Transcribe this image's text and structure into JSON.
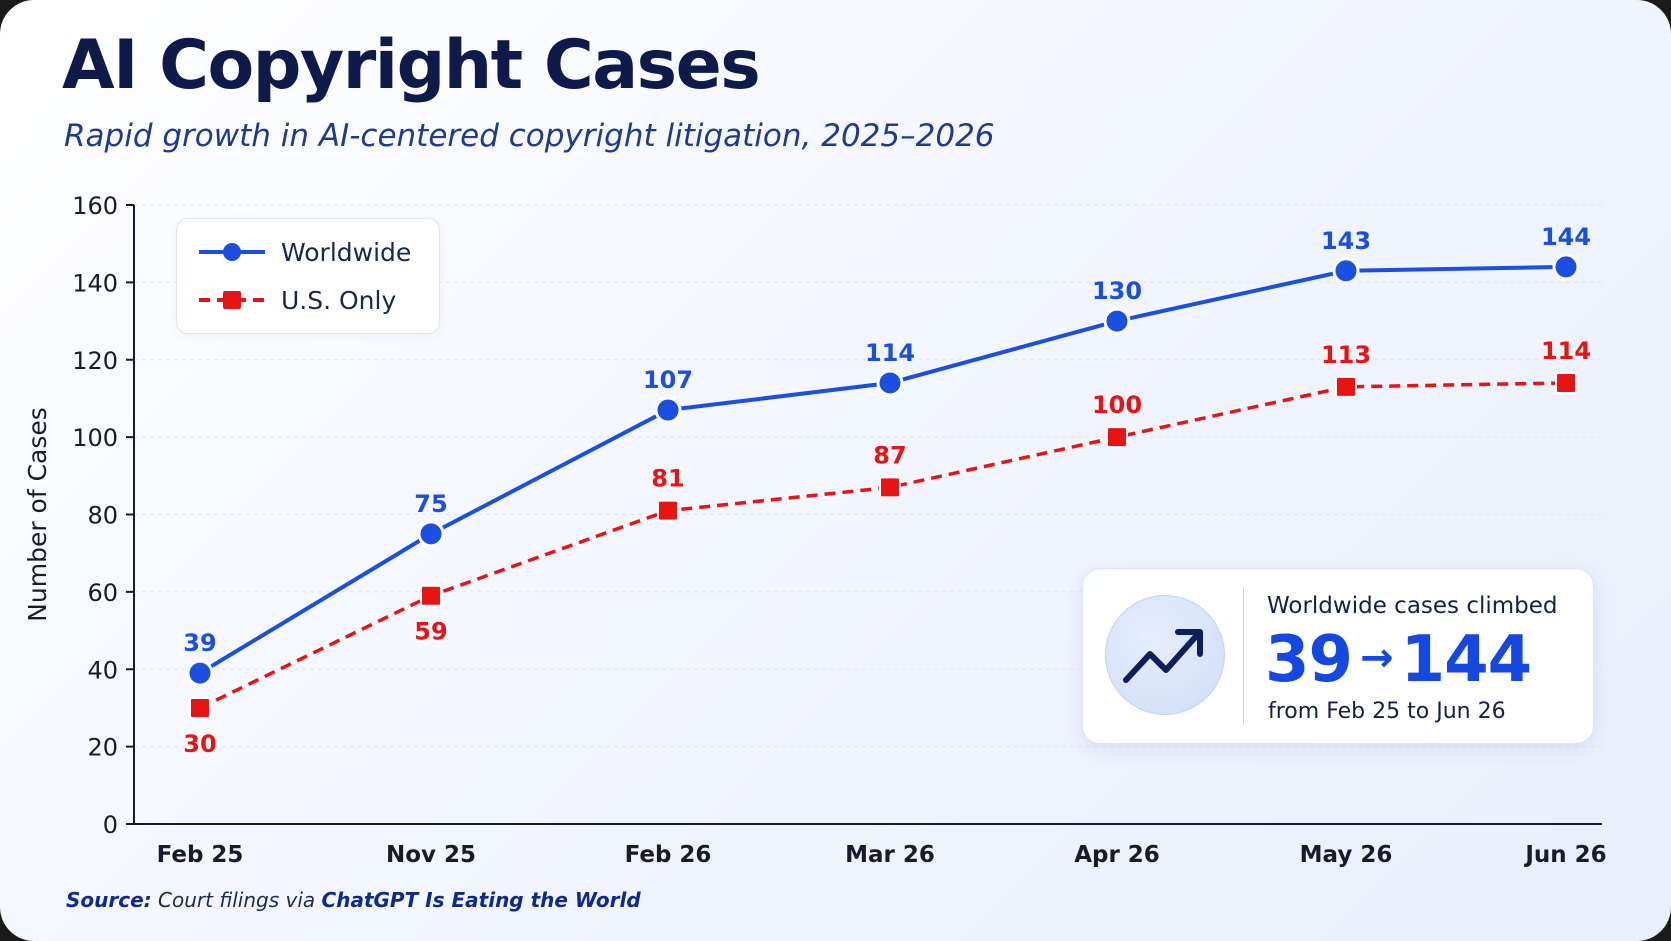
{
  "title": "AI Copyright Cases",
  "subtitle": "Rapid growth in AI-centered copyright litigation, 2025–2026",
  "source": {
    "label": "Source:",
    "text": "Court filings via",
    "publication": "ChatGPT Is Eating the World"
  },
  "callout": {
    "heading": "Worldwide cases climbed",
    "from_value": "39",
    "arrow": "→",
    "to_value": "144",
    "footnote": "from Feb 25 to Jun 26",
    "icon": "trending-up-icon"
  },
  "colors": {
    "worldwide": "#1a4fe0",
    "us_only": "#e81414",
    "title": "#0d1a4a",
    "axis": "#1a1a2e"
  },
  "chart_data": {
    "type": "line",
    "title": "AI Copyright Cases",
    "ylabel": "Number of Cases",
    "xlabel": "",
    "categories": [
      "Feb 25",
      "Nov 25",
      "Feb 26",
      "Mar 26",
      "Apr 26",
      "May 26",
      "Jun 26"
    ],
    "ylim": [
      0,
      160
    ],
    "yticks": [
      0,
      20,
      40,
      60,
      80,
      100,
      120,
      140,
      160
    ],
    "grid": true,
    "legend_position": "top-left",
    "series": [
      {
        "name": "Worldwide",
        "values": [
          39,
          75,
          107,
          114,
          130,
          143,
          144
        ],
        "labels": [
          "39",
          "75",
          "107",
          "114",
          "130",
          "143",
          "144"
        ],
        "color": "#1a4fe0",
        "marker": "circle",
        "style": "solid"
      },
      {
        "name": "U.S. Only",
        "values": [
          30,
          59,
          81,
          87,
          100,
          113,
          114
        ],
        "labels": [
          "30",
          "59",
          "81",
          "87",
          "100",
          "113",
          "114"
        ],
        "color": "#e81414",
        "marker": "square",
        "style": "dashed"
      }
    ]
  }
}
